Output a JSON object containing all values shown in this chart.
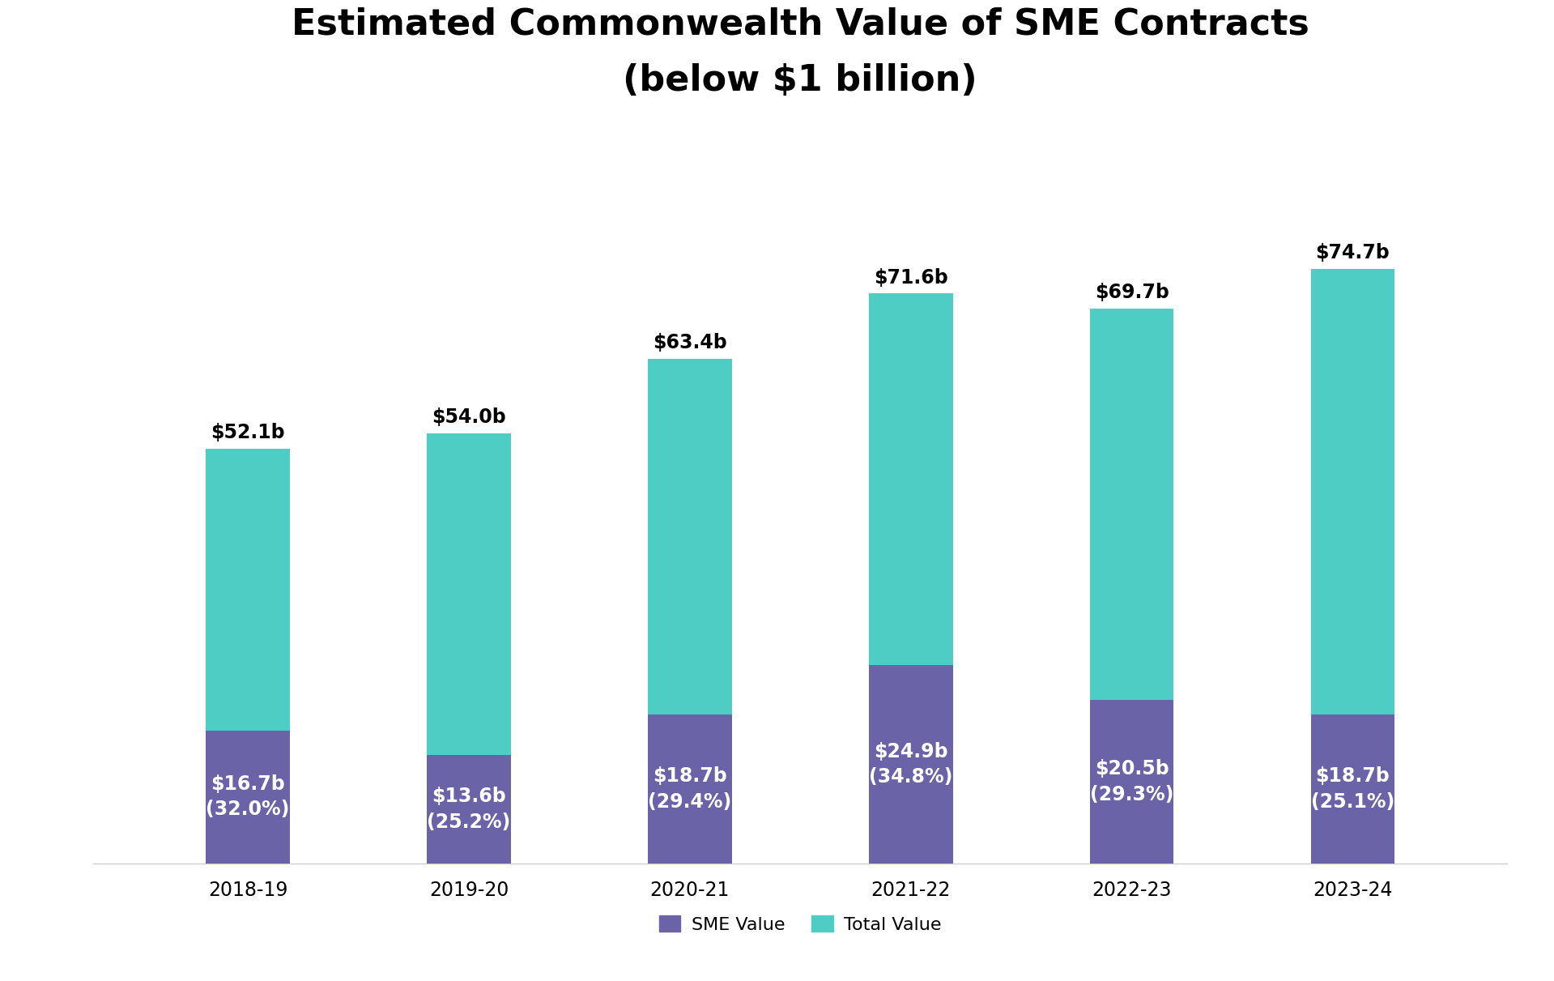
{
  "title": "Estimated Commonwealth Value of SME Contracts\n(below $1 billion)",
  "categories": [
    "2018-19",
    "2019-20",
    "2020-21",
    "2021-22",
    "2022-23",
    "2023-24"
  ],
  "sme_values": [
    16.7,
    13.6,
    18.7,
    24.9,
    20.5,
    18.7
  ],
  "total_values": [
    52.1,
    54.0,
    63.4,
    71.6,
    69.7,
    74.7
  ],
  "sme_labels": [
    "$16.7b\n(32.0%)",
    "$13.6b\n(25.2%)",
    "$18.7b\n(29.4%)",
    "$24.9b\n(34.8%)",
    "$20.5b\n(29.3%)",
    "$18.7b\n(25.1%)"
  ],
  "total_labels": [
    "$52.1b",
    "$54.0b",
    "$63.4b",
    "$71.6b",
    "$69.7b",
    "$74.7b"
  ],
  "sme_color": "#6B63A8",
  "total_color": "#4ECDC4",
  "background_color": "#FFFFFF",
  "title_fontsize": 32,
  "label_fontsize": 17,
  "tick_fontsize": 17,
  "legend_fontsize": 16,
  "bar_width": 0.38,
  "ylim": [
    0,
    90
  ],
  "legend_labels": [
    "SME Value",
    "Total Value"
  ]
}
